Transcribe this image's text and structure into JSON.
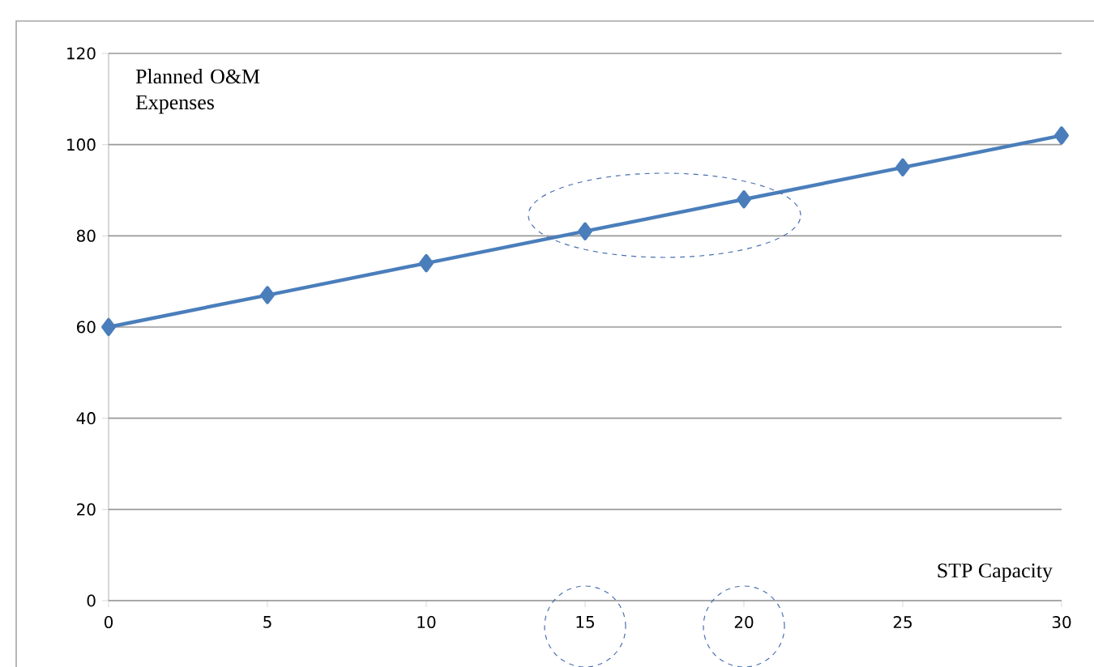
{
  "chart_data": {
    "type": "line",
    "xlabel": "STP Capacity",
    "ylabel": "Planned O&M Expenses",
    "x": [
      0,
      5,
      10,
      15,
      20,
      25,
      30
    ],
    "series": [
      {
        "color": "#4a7ebb",
        "values": [
          60,
          67,
          74,
          81,
          88,
          95,
          102
        ]
      }
    ],
    "xlim": [
      0,
      30
    ],
    "xticks": [
      0,
      5,
      10,
      15,
      20,
      25,
      30
    ],
    "ylim": [
      0,
      120
    ],
    "yticks": [
      0,
      20,
      40,
      60,
      80,
      100,
      120
    ],
    "grid": "y",
    "marker": "diamond",
    "line_style": "solid"
  }
}
